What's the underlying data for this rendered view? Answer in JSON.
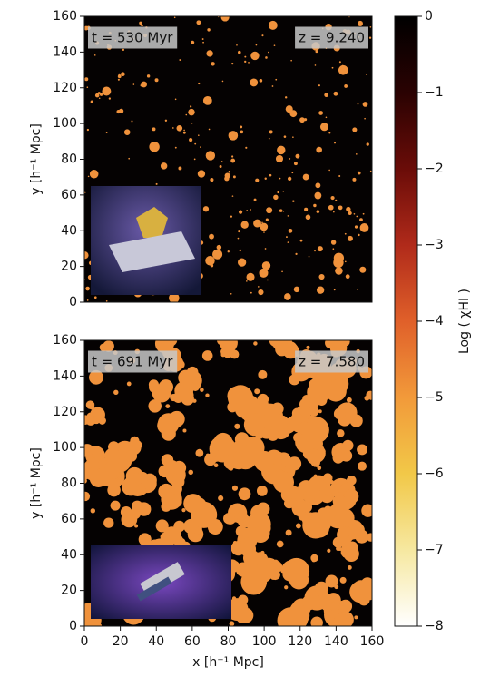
{
  "chart_data": [
    {
      "type": "map",
      "annotations": [
        "t = 530 Myr",
        "z = 9.240"
      ],
      "ylabel": "y [h⁻¹ Mpc]",
      "xlim": [
        0,
        160
      ],
      "ylim": [
        0,
        160
      ],
      "yticks": [
        0,
        20,
        40,
        60,
        80,
        100,
        120,
        140,
        160
      ]
    },
    {
      "type": "map",
      "annotations": [
        "t = 691 Myr",
        "z = 7.580"
      ],
      "ylabel": "y [h⁻¹ Mpc]",
      "xlabel": "x [h⁻¹ Mpc]",
      "xlim": [
        0,
        160
      ],
      "ylim": [
        0,
        160
      ],
      "xticks": [
        0,
        20,
        40,
        60,
        80,
        100,
        120,
        140,
        160
      ],
      "yticks": [
        0,
        20,
        40,
        60,
        80,
        100,
        120,
        140,
        160
      ]
    },
    {
      "type": "colorbar",
      "label": "Log ( χHI )",
      "ylim": [
        -8,
        0
      ],
      "colors": [
        "#ffffff",
        "#f6e8a0",
        "#f2c848",
        "#f29a3a",
        "#e0602a",
        "#b02a1a",
        "#6a0c08",
        "#2a0202",
        "#000000"
      ],
      "yticks": [
        0,
        {
          "value": -1,
          "label": "−1"
        },
        {
          "value": -2,
          "label": "−2"
        },
        {
          "value": -3,
          "label": "−3"
        },
        {
          "value": -4,
          "label": "−4"
        },
        {
          "value": -5,
          "label": "−5"
        },
        {
          "value": -6,
          "label": "−6"
        },
        {
          "value": -7,
          "label": "−7"
        },
        {
          "value": -8,
          "label": "−8"
        }
      ]
    }
  ]
}
